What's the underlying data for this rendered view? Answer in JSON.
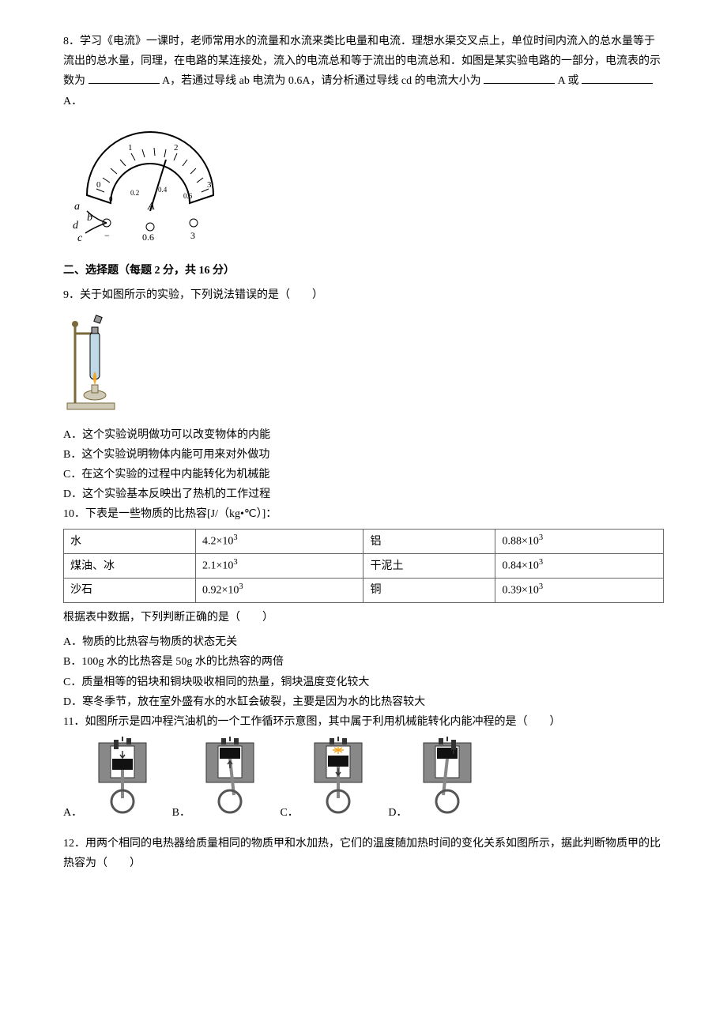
{
  "q8": {
    "text_a": "8．学习《电流》一课时，老师常用水的流量和水流来类比电量和电流．理想水渠交叉点上，单位时间内流入的总水量等于流出的总水量，同理，在电路的某连接处，流入的电流总和等于流出的电流总和．如图是某实验电路的一部分，电流表的示数为",
    "text_b": "A，若通过导线 ab 电流为 0.6A，请分析通过导线 cd 的电流大小为",
    "text_c": "A 或",
    "text_d": "A．",
    "ammeter": {
      "major_ticks_top": [
        "0",
        "1",
        "2",
        "3"
      ],
      "major_ticks_bottom": [
        "0",
        "0.2",
        "0.4",
        "0.6"
      ],
      "terminal_labels": [
        "−",
        "0.6",
        "3"
      ],
      "side_labels": {
        "a": "a",
        "b": "b",
        "c": "c",
        "d": "d"
      },
      "colors": {
        "stroke": "#000000",
        "fill": "#ffffff"
      }
    }
  },
  "section2": {
    "title": "二、选择题（每题 2 分，共 16 分）"
  },
  "q9": {
    "stem": "9．关于如图所示的实验，下列说法错误的是（　　）",
    "opts": {
      "A": "A．这个实验说明做功可以改变物体的内能",
      "B": "B．这个实验说明物体内能可用来对外做功",
      "C": "C．在这个实验的过程中内能转化为机械能",
      "D": "D．这个实验基本反映出了热机的工作过程"
    },
    "fig_colors": {
      "stand": "#7a6a3a",
      "tube": "#bfd9e8",
      "flame": "#f5a623",
      "base": "#cfc9b8"
    }
  },
  "q10": {
    "stem": "10．下表是一些物质的比热容[J/（kg•℃）]：",
    "table": {
      "rows": [
        [
          "水",
          "4.2×10",
          "铝",
          "0.88×10"
        ],
        [
          "煤油、冰",
          "2.1×10",
          "干泥土",
          "0.84×10"
        ],
        [
          "沙石",
          "0.92×10",
          "铜",
          "0.39×10"
        ]
      ],
      "sup": "3",
      "col_widths": [
        "22%",
        "28%",
        "22%",
        "28%"
      ],
      "border_color": "#666666"
    },
    "stem2": "根据表中数据，下列判断正确的是（　　）",
    "opts": {
      "A": "A．物质的比热容与物质的状态无关",
      "B": "B．100g 水的比热容是 50g 水的比热容的两倍",
      "C": "C．质量相等的铝块和铜块吸收相同的热量，铜块温度变化较大",
      "D": "D．寒冬季节，放在室外盛有水的水缸会破裂，主要是因为水的比热容较大"
    }
  },
  "q11": {
    "stem": "11．如图所示是四冲程汽油机的一个工作循环示意图，其中属于利用机械能转化内能冲程的是（　　）",
    "labels": {
      "A": "A．",
      "B": "B．",
      "C": "C．",
      "D": "D．"
    },
    "engine_colors": {
      "body": "#555555",
      "body_light": "#888888",
      "piston": "#111111",
      "rod": "#888888",
      "spark": "#f5a623",
      "bg": "#ffffff"
    }
  },
  "q12": {
    "stem": "12．用两个相同的电热器给质量相同的物质甲和水加热，它们的温度随加热时间的变化关系如图所示，据此判断物质甲的比热容为（　　）"
  }
}
